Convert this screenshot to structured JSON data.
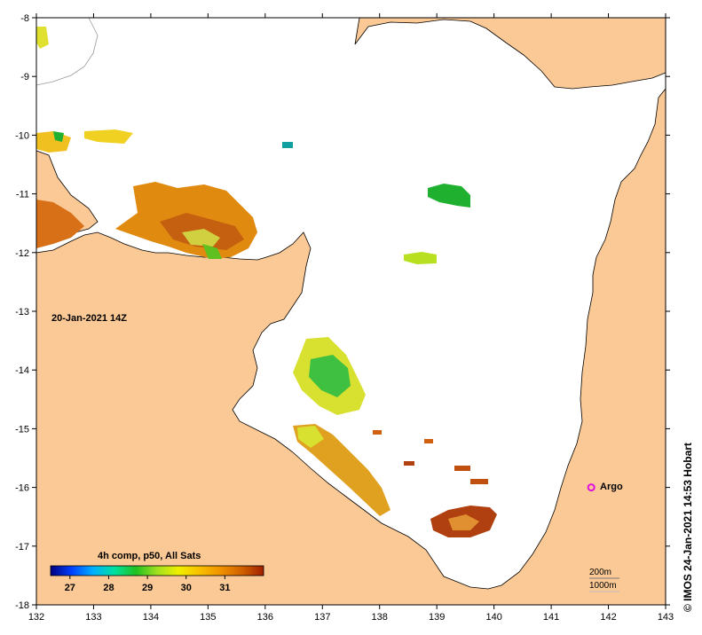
{
  "map": {
    "timestamp": "20-Jan-2021 14Z",
    "credit": "© IMOS 24-Jan-2021 14:53 Hobart",
    "x_ticks": [
      "132",
      "133",
      "134",
      "135",
      "136",
      "137",
      "138",
      "139",
      "140",
      "141",
      "142",
      "143"
    ],
    "y_ticks": [
      "-8",
      "-9",
      "-10",
      "-11",
      "-12",
      "-13",
      "-14",
      "-15",
      "-16",
      "-17",
      "-18"
    ],
    "lon_range": [
      132,
      143
    ],
    "lat_range": [
      -18,
      -8
    ],
    "land_color": "#fbc995",
    "ocean_color": "#ffffff",
    "argo": {
      "label": "Argo",
      "lon": 141.7,
      "lat": -16.0,
      "color": "#e010e0"
    },
    "depth_contours": [
      "200m",
      "1000m"
    ]
  },
  "colorbar": {
    "title": "4h comp, p50, All Sats",
    "ticks": [
      "27",
      "28",
      "29",
      "30",
      "31"
    ],
    "range": [
      26.5,
      32.0
    ],
    "colors": [
      "#000080",
      "#0040ff",
      "#00b0ff",
      "#00e0a0",
      "#20c020",
      "#a0e020",
      "#f0f000",
      "#f8c000",
      "#f09000",
      "#d06000",
      "#a02000"
    ]
  }
}
